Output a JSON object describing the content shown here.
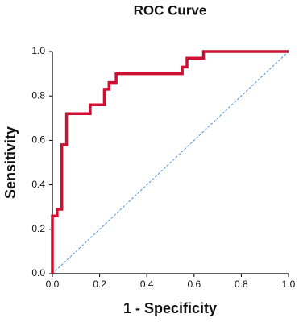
{
  "chart_data": {
    "type": "line",
    "title": "ROC Curve",
    "x_label": "1 - Specificity",
    "y_label": "Sensitivity",
    "series": [
      {
        "color": "#cc1133",
        "x": [
          0,
          0,
          0.02,
          0.02,
          0.04,
          0.04,
          0.06,
          0.06,
          0.16,
          0.16,
          0.22,
          0.22,
          0.24,
          0.24,
          0.27,
          0.27,
          0.55,
          0.55,
          0.57,
          0.57,
          0.64,
          0.64,
          1
        ],
        "values": [
          0,
          0.26,
          0.26,
          0.29,
          0.29,
          0.58,
          0.58,
          0.72,
          0.72,
          0.76,
          0.76,
          0.83,
          0.83,
          0.86,
          0.86,
          0.9,
          0.9,
          0.93,
          0.93,
          0.97,
          0.97,
          1,
          1
        ]
      }
    ],
    "reference_line": {
      "x": [
        0,
        1
      ],
      "values": [
        0,
        1
      ],
      "color": "#4a90d9",
      "dashed": true
    },
    "xlim": [
      0,
      1
    ],
    "ylim": [
      0,
      1
    ],
    "xticks": [
      {
        "value": 0,
        "label": "0.0"
      },
      0.2,
      0.4,
      0.6,
      0.8,
      {
        "value": 1,
        "label": "1.0"
      }
    ],
    "yticks": [
      {
        "value": 0,
        "label": "0.0"
      },
      0.2,
      0.4,
      0.6,
      0.8,
      {
        "value": 1,
        "label": "1.0"
      }
    ]
  }
}
